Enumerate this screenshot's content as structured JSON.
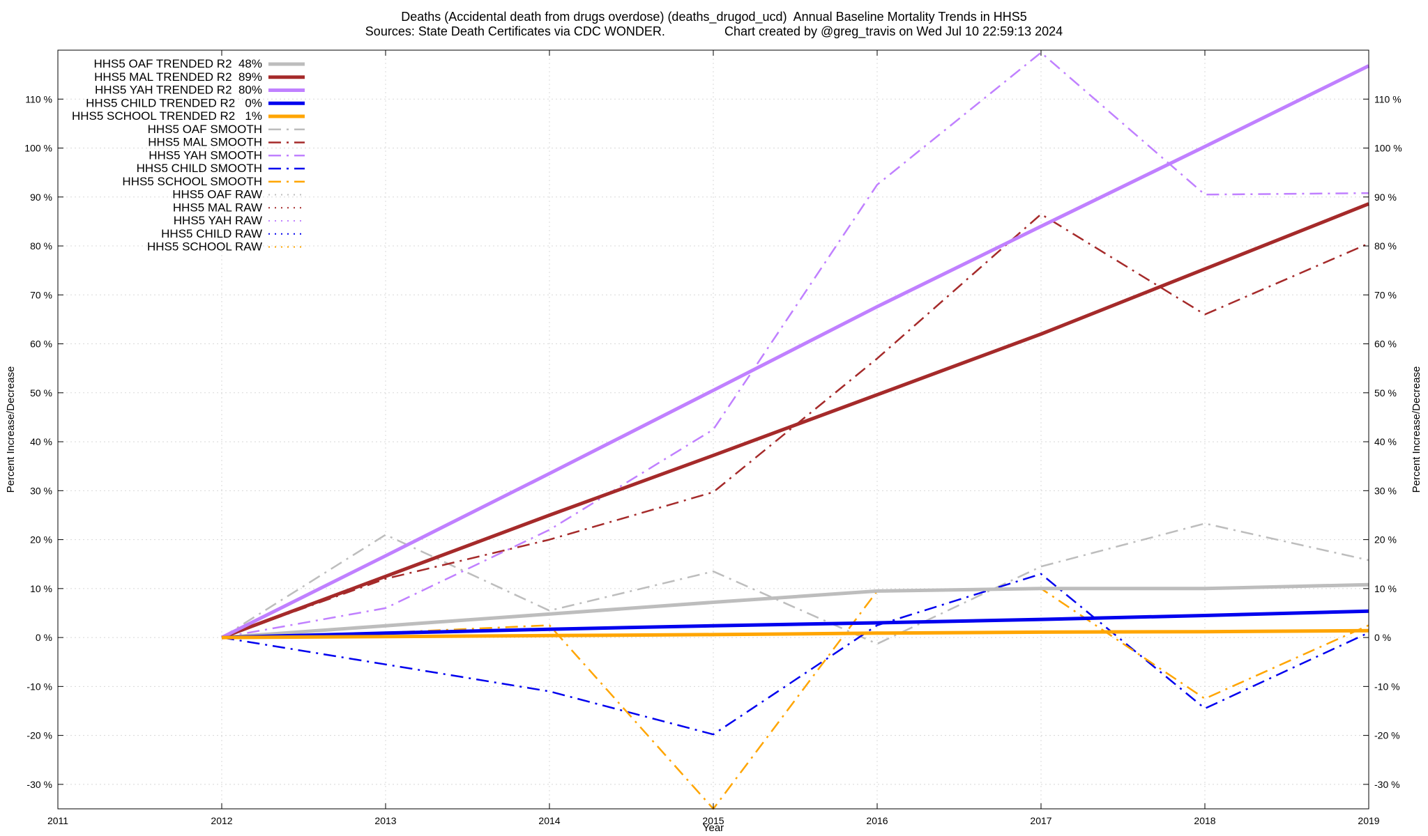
{
  "title_line1": "Deaths (Accidental death from drugs overdose) (deaths_drugod_ucd)  Annual Baseline Mortality Trends in HHS5",
  "title_line2": "Sources: State Death Certificates via CDC WONDER.                 Chart created by @greg_travis on Wed Jul 10 22:59:13 2024",
  "chart_data": {
    "type": "line",
    "xlabel": "Year",
    "ylabel": "Percent Increase/Decrease",
    "y2label": "Percent Increase/Decrease",
    "xlim": [
      2011,
      2019
    ],
    "ylim": [
      -35,
      120
    ],
    "xticks": [
      2011,
      2012,
      2013,
      2014,
      2015,
      2016,
      2017,
      2018,
      2019
    ],
    "yticks": [
      -30,
      -20,
      -10,
      0,
      10,
      20,
      30,
      40,
      50,
      60,
      70,
      80,
      90,
      100,
      110
    ],
    "ytick_suffix": " %",
    "grid": true,
    "legend_position": "top-left",
    "series": [
      {
        "name": "HHS5 OAF TRENDED R2  48%",
        "color": "#bdbdbd",
        "style": "solid",
        "width": 5,
        "x": [
          2012,
          2013,
          2014,
          2015,
          2016,
          2017,
          2018,
          2019
        ],
        "y": [
          0,
          2.4,
          4.8,
          7.2,
          9.5,
          10.0,
          10.0,
          10.8
        ]
      },
      {
        "name": "HHS5 MAL TRENDED R2  89%",
        "color": "#a52a2a",
        "style": "solid",
        "width": 5,
        "x": [
          2012,
          2013,
          2014,
          2015,
          2016,
          2017,
          2018,
          2019
        ],
        "y": [
          0,
          12.5,
          25.0,
          37.2,
          49.6,
          62.0,
          75.3,
          88.6
        ]
      },
      {
        "name": "HHS5 YAH TRENDED R2  80%",
        "color": "#c080ff",
        "style": "solid",
        "width": 5,
        "x": [
          2012,
          2013,
          2014,
          2015,
          2016,
          2017,
          2018,
          2019
        ],
        "y": [
          0,
          16.7,
          33.5,
          50.5,
          67.6,
          84.0,
          100.3,
          116.8
        ]
      },
      {
        "name": "HHS5 CHILD TRENDED R2   0%",
        "color": "#0000ee",
        "style": "solid",
        "width": 5,
        "x": [
          2012,
          2013,
          2014,
          2015,
          2016,
          2017,
          2018,
          2019
        ],
        "y": [
          0,
          0.9,
          1.7,
          2.4,
          3.0,
          3.7,
          4.5,
          5.4
        ]
      },
      {
        "name": "HHS5 SCHOOL TRENDED R2   1%",
        "color": "#ffa500",
        "style": "solid",
        "width": 5,
        "x": [
          2012,
          2013,
          2014,
          2015,
          2016,
          2017,
          2018,
          2019
        ],
        "y": [
          0,
          0.2,
          0.4,
          0.6,
          0.9,
          1.1,
          1.2,
          1.4
        ]
      },
      {
        "name": "HHS5 OAF SMOOTH",
        "color": "#bdbdbd",
        "style": "dashdot",
        "width": 2.5,
        "x": [
          2012,
          2013,
          2014,
          2015,
          2016,
          2017,
          2018,
          2019
        ],
        "y": [
          0,
          21.0,
          5.5,
          13.5,
          -1.3,
          14.5,
          23.3,
          15.8
        ]
      },
      {
        "name": "HHS5 MAL SMOOTH",
        "color": "#a52a2a",
        "style": "dashdot",
        "width": 2.5,
        "x": [
          2012,
          2013,
          2014,
          2015,
          2016,
          2017,
          2018,
          2019
        ],
        "y": [
          0,
          12.0,
          20.0,
          29.7,
          57.0,
          86.5,
          66.0,
          80.5
        ]
      },
      {
        "name": "HHS5 YAH SMOOTH",
        "color": "#c080ff",
        "style": "dashdot",
        "width": 2.5,
        "x": [
          2012,
          2013,
          2014,
          2015,
          2016,
          2017,
          2018,
          2019
        ],
        "y": [
          0,
          6.0,
          22.0,
          42.5,
          92.5,
          119.5,
          90.5,
          90.8
        ]
      },
      {
        "name": "HHS5 CHILD SMOOTH",
        "color": "#0000ee",
        "style": "dashdot",
        "width": 2.5,
        "x": [
          2012,
          2013,
          2014,
          2015,
          2016,
          2017,
          2018,
          2019
        ],
        "y": [
          0,
          -5.5,
          -11.0,
          -19.8,
          2.5,
          13.0,
          -14.5,
          1.0
        ]
      },
      {
        "name": "HHS5 SCHOOL SMOOTH",
        "color": "#ffa500",
        "style": "dashdot",
        "width": 2.5,
        "x": [
          2012,
          2013,
          2014,
          2015,
          2016,
          2017,
          2018,
          2019
        ],
        "y": [
          0,
          1.0,
          2.5,
          -35.0,
          9.5,
          10.0,
          -12.5,
          2.5
        ]
      },
      {
        "name": "HHS5 OAF RAW",
        "color": "#bdbdbd",
        "style": "dotted",
        "width": 2,
        "x": [],
        "y": []
      },
      {
        "name": "HHS5 MAL RAW",
        "color": "#a52a2a",
        "style": "dotted",
        "width": 2,
        "x": [],
        "y": []
      },
      {
        "name": "HHS5 YAH RAW",
        "color": "#c080ff",
        "style": "dotted",
        "width": 2,
        "x": [],
        "y": []
      },
      {
        "name": "HHS5 CHILD RAW",
        "color": "#0000ee",
        "style": "dotted",
        "width": 2,
        "x": [],
        "y": []
      },
      {
        "name": "HHS5 SCHOOL RAW",
        "color": "#ffa500",
        "style": "dotted",
        "width": 2,
        "x": [],
        "y": []
      }
    ]
  }
}
